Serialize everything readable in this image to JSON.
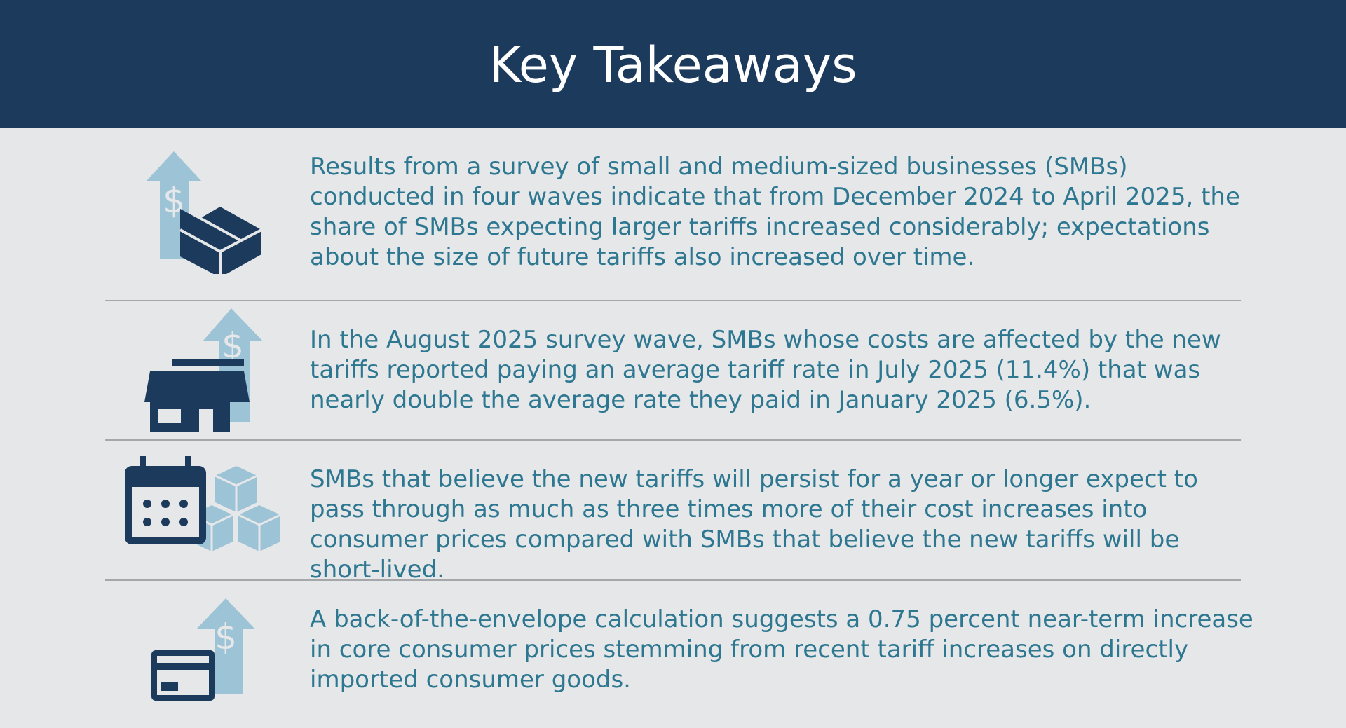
{
  "header": {
    "title": "Key Takeaways"
  },
  "takeaways": [
    {
      "icon": "box-price-up-icon",
      "text": "Results from a survey of small and medium-sized businesses (SMBs) conducted in four waves indicate that from December 2024 to April 2025, the share of SMBs expecting larger tariffs increased considerably; expectations about the size of future tariffs also increased over time."
    },
    {
      "icon": "storefront-price-up-icon",
      "text": "In the August 2025 survey wave, SMBs whose costs are affected by the new tariffs reported paying an average tariff rate in July 2025 (11.4%) that was nearly double the average rate they paid in January 2025 (6.5%)."
    },
    {
      "icon": "calendar-boxes-icon",
      "text": "SMBs that believe the new tariffs will persist for a year or longer expect to pass through as much as three times more of their cost increases into consumer prices compared with SMBs that believe the new tariffs will be short-lived."
    },
    {
      "icon": "credit-card-price-up-icon",
      "text": "A back-of-the-envelope calculation suggests a 0.75 percent near-term increase in core consumer prices stemming from recent tariff increases on directly imported consumer goods."
    }
  ],
  "colors": {
    "header_bg": "#1b3a5c",
    "page_bg": "#e6e7e9",
    "text": "#2d7791",
    "icon_dark": "#1b3a5c",
    "icon_light": "#9cc3d6",
    "divider": "#a5a7aa"
  }
}
